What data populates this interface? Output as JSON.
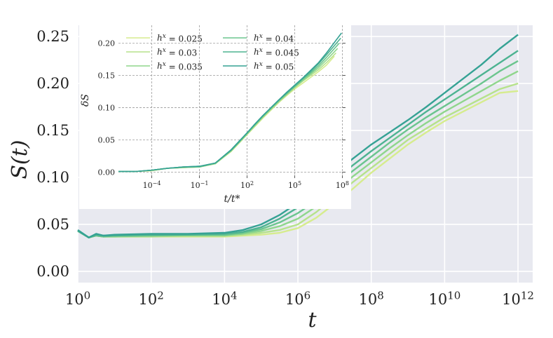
{
  "chart_data": [
    {
      "id": "main",
      "type": "line",
      "xlabel": "t",
      "ylabel": "S(t)",
      "xscale": "log",
      "xlim_log10": [
        0,
        12.4
      ],
      "ylim": [
        -0.012,
        0.262
      ],
      "x_ticks": [
        {
          "exp": 0,
          "label_base": "10",
          "label_exp": "0"
        },
        {
          "exp": 2,
          "label_base": "10",
          "label_exp": "2"
        },
        {
          "exp": 4,
          "label_base": "10",
          "label_exp": "4"
        },
        {
          "exp": 6,
          "label_base": "10",
          "label_exp": "6"
        },
        {
          "exp": 8,
          "label_base": "10",
          "label_exp": "8"
        },
        {
          "exp": 10,
          "label_base": "10",
          "label_exp": "10"
        },
        {
          "exp": 12,
          "label_base": "10",
          "label_exp": "12"
        }
      ],
      "y_ticks": [
        {
          "value": 0.0,
          "label": "0.00"
        },
        {
          "value": 0.05,
          "label": "0.05"
        },
        {
          "value": 0.1,
          "label": "0.10"
        },
        {
          "value": 0.15,
          "label": "0.15"
        },
        {
          "value": 0.2,
          "label": "0.20"
        },
        {
          "value": 0.25,
          "label": "0.25"
        }
      ],
      "grid": true,
      "background": "#e8e9f0",
      "series": [
        {
          "color": "#d6ec8e",
          "log10_t": [
            0,
            0.3,
            0.5,
            0.7,
            1,
            2,
            3,
            4,
            4.5,
            5,
            5.5,
            6,
            6.5,
            7,
            7.5,
            8,
            8.5,
            9,
            9.5,
            10,
            10.5,
            11,
            11.5,
            12
          ],
          "values": [
            0.043,
            0.036,
            0.038,
            0.037,
            0.037,
            0.037,
            0.037,
            0.037,
            0.038,
            0.039,
            0.041,
            0.046,
            0.057,
            0.072,
            0.088,
            0.105,
            0.12,
            0.135,
            0.148,
            0.16,
            0.17,
            0.18,
            0.19,
            0.192
          ]
        },
        {
          "color": "#b6e28b",
          "log10_t": [
            0,
            0.3,
            0.5,
            0.7,
            1,
            2,
            3,
            4,
            4.5,
            5,
            5.5,
            6,
            6.5,
            7,
            7.5,
            8,
            8.5,
            9,
            9.5,
            10,
            10.5,
            11,
            11.5,
            12
          ],
          "values": [
            0.043,
            0.036,
            0.038,
            0.037,
            0.037,
            0.037,
            0.038,
            0.038,
            0.039,
            0.041,
            0.044,
            0.05,
            0.063,
            0.079,
            0.095,
            0.11,
            0.125,
            0.14,
            0.152,
            0.164,
            0.174,
            0.184,
            0.194,
            0.2
          ]
        },
        {
          "color": "#8fd68c",
          "log10_t": [
            0,
            0.3,
            0.5,
            0.7,
            1,
            2,
            3,
            4,
            4.5,
            5,
            5.5,
            6,
            6.5,
            7,
            7.5,
            8,
            8.5,
            9,
            9.5,
            10,
            10.5,
            11,
            11.5,
            12
          ],
          "values": [
            0.043,
            0.036,
            0.038,
            0.037,
            0.037,
            0.038,
            0.038,
            0.038,
            0.04,
            0.043,
            0.048,
            0.056,
            0.069,
            0.085,
            0.101,
            0.116,
            0.131,
            0.145,
            0.158,
            0.17,
            0.181,
            0.192,
            0.203,
            0.213
          ]
        },
        {
          "color": "#6bc58e",
          "log10_t": [
            0,
            0.3,
            0.5,
            0.7,
            1,
            2,
            3,
            4,
            4.5,
            5,
            5.5,
            6,
            6.5,
            7,
            7.5,
            8,
            8.5,
            9,
            9.5,
            10,
            10.5,
            11,
            11.5,
            12
          ],
          "values": [
            0.043,
            0.036,
            0.038,
            0.037,
            0.038,
            0.038,
            0.039,
            0.039,
            0.041,
            0.045,
            0.052,
            0.062,
            0.075,
            0.091,
            0.107,
            0.122,
            0.137,
            0.151,
            0.164,
            0.176,
            0.188,
            0.2,
            0.213,
            0.224
          ]
        },
        {
          "color": "#4db391",
          "log10_t": [
            0,
            0.3,
            0.5,
            0.7,
            1,
            2,
            3,
            4,
            4.5,
            5,
            5.5,
            6,
            6.5,
            7,
            7.5,
            8,
            8.5,
            9,
            9.5,
            10,
            10.5,
            11,
            11.5,
            12
          ],
          "values": [
            0.043,
            0.036,
            0.039,
            0.038,
            0.038,
            0.039,
            0.039,
            0.04,
            0.042,
            0.047,
            0.056,
            0.068,
            0.082,
            0.097,
            0.113,
            0.128,
            0.142,
            0.156,
            0.17,
            0.183,
            0.196,
            0.209,
            0.222,
            0.235
          ]
        },
        {
          "color": "#35a294",
          "log10_t": [
            0,
            0.3,
            0.5,
            0.7,
            1,
            2,
            3,
            4,
            4.5,
            5,
            5.5,
            6,
            6.5,
            7,
            7.5,
            8,
            8.5,
            9,
            9.5,
            10,
            10.5,
            11,
            11.5,
            12
          ],
          "values": [
            0.044,
            0.036,
            0.04,
            0.038,
            0.039,
            0.04,
            0.04,
            0.041,
            0.044,
            0.05,
            0.06,
            0.073,
            0.088,
            0.104,
            0.12,
            0.135,
            0.148,
            0.161,
            0.175,
            0.19,
            0.205,
            0.22,
            0.237,
            0.252
          ]
        }
      ]
    },
    {
      "id": "inset",
      "type": "line",
      "xlabel": "t/t*",
      "ylabel": "δS",
      "xscale": "log",
      "xlim_log10": [
        -6.1,
        8.2
      ],
      "ylim": [
        -0.005,
        0.228
      ],
      "x_ticks": [
        {
          "exp": -4,
          "label_base": "10",
          "label_exp": "−4"
        },
        {
          "exp": -1,
          "label_base": "10",
          "label_exp": "−1"
        },
        {
          "exp": 2,
          "label_base": "10",
          "label_exp": "2"
        },
        {
          "exp": 5,
          "label_base": "10",
          "label_exp": "5"
        },
        {
          "exp": 8,
          "label_base": "10",
          "label_exp": "8"
        }
      ],
      "y_ticks": [
        {
          "value": 0.0,
          "label": "0.00"
        },
        {
          "value": 0.05,
          "label": "0.05"
        },
        {
          "value": 0.1,
          "label": "0.10"
        },
        {
          "value": 0.15,
          "label": "0.15"
        },
        {
          "value": 0.2,
          "label": "0.20"
        }
      ],
      "grid": true,
      "legend_position": "top-left",
      "series": [
        {
          "name_base": "h",
          "name_sup": "x",
          "name_rest": " = 0.025",
          "color": "#d6ec8e",
          "log10_tt": [
            -6.1,
            -5,
            -4,
            -3,
            -2,
            -1,
            0,
            1,
            1.5,
            2,
            2.5,
            3,
            3.5,
            4,
            4.5,
            5,
            5.5,
            6,
            6.5,
            7,
            7.5
          ],
          "values": [
            0.001,
            0.001,
            0.002,
            0.006,
            0.007,
            0.008,
            0.013,
            0.032,
            0.045,
            0.058,
            0.071,
            0.084,
            0.096,
            0.108,
            0.119,
            0.129,
            0.138,
            0.147,
            0.156,
            0.166,
            0.18
          ]
        },
        {
          "name_base": "h",
          "name_sup": "x",
          "name_rest": " = 0.03",
          "color": "#b6e28b",
          "log10_tt": [
            -6.1,
            -5,
            -4,
            -3,
            -2,
            -1,
            0,
            1,
            1.5,
            2,
            2.5,
            3,
            3.5,
            4,
            4.5,
            5,
            5.5,
            6,
            6.5,
            7,
            7.6
          ],
          "values": [
            0.001,
            0.001,
            0.003,
            0.006,
            0.007,
            0.008,
            0.013,
            0.033,
            0.046,
            0.059,
            0.072,
            0.085,
            0.097,
            0.109,
            0.12,
            0.131,
            0.141,
            0.15,
            0.159,
            0.17,
            0.185
          ]
        },
        {
          "name_base": "h",
          "name_sup": "x",
          "name_rest": " = 0.035",
          "color": "#8fd68c",
          "log10_tt": [
            -6.1,
            -5,
            -4,
            -3,
            -2,
            -1,
            0,
            1,
            1.5,
            2,
            2.5,
            3,
            3.5,
            4,
            4.5,
            5,
            5.5,
            6,
            6.5,
            7,
            7.7
          ],
          "values": [
            0.001,
            0.001,
            0.003,
            0.006,
            0.007,
            0.008,
            0.013,
            0.033,
            0.046,
            0.059,
            0.073,
            0.086,
            0.098,
            0.11,
            0.121,
            0.132,
            0.142,
            0.152,
            0.162,
            0.174,
            0.192
          ]
        },
        {
          "name_base": "h",
          "name_sup": "x",
          "name_rest": " = 0.04",
          "color": "#6bc58e",
          "log10_tt": [
            -6.1,
            -5,
            -4,
            -3,
            -2,
            -1,
            0,
            1,
            1.5,
            2,
            2.5,
            3,
            3.5,
            4,
            4.5,
            5,
            5.5,
            6,
            6.5,
            7,
            7.8
          ],
          "values": [
            0.001,
            0.001,
            0.003,
            0.006,
            0.008,
            0.008,
            0.014,
            0.034,
            0.047,
            0.06,
            0.074,
            0.087,
            0.099,
            0.111,
            0.122,
            0.133,
            0.144,
            0.154,
            0.165,
            0.178,
            0.2
          ]
        },
        {
          "name_base": "h",
          "name_sup": "x",
          "name_rest": " = 0.045",
          "color": "#4db391",
          "log10_tt": [
            -6.1,
            -5,
            -4,
            -3,
            -2,
            -1,
            0,
            1,
            1.5,
            2,
            2.5,
            3,
            3.5,
            4,
            4.5,
            5,
            5.5,
            6,
            6.5,
            7,
            7.9
          ],
          "values": [
            0.001,
            0.001,
            0.003,
            0.006,
            0.008,
            0.009,
            0.014,
            0.034,
            0.047,
            0.061,
            0.074,
            0.087,
            0.1,
            0.112,
            0.123,
            0.134,
            0.145,
            0.156,
            0.168,
            0.182,
            0.208
          ]
        },
        {
          "name_base": "h",
          "name_sup": "x",
          "name_rest": " = 0.05",
          "color": "#35a294",
          "log10_tt": [
            -6.1,
            -5,
            -4,
            -3,
            -2,
            -1,
            0,
            1,
            1.5,
            2,
            2.5,
            3,
            3.5,
            4,
            4.5,
            5,
            5.5,
            6,
            6.5,
            7,
            7.95
          ],
          "values": [
            0.001,
            0.001,
            0.003,
            0.006,
            0.008,
            0.009,
            0.014,
            0.035,
            0.048,
            0.061,
            0.075,
            0.088,
            0.1,
            0.112,
            0.124,
            0.135,
            0.146,
            0.158,
            0.17,
            0.185,
            0.216
          ]
        }
      ]
    }
  ]
}
